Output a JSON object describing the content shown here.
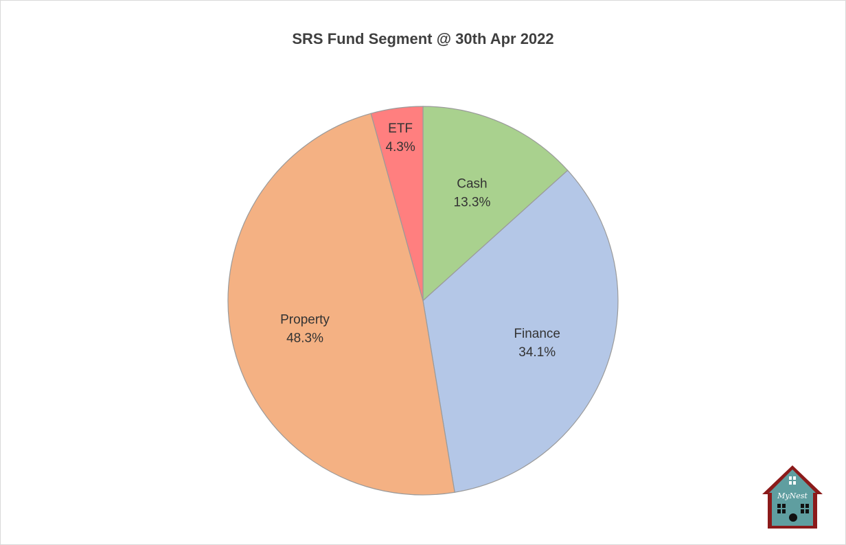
{
  "chart_data": {
    "type": "pie",
    "title": "SRS Fund Segment @ 30th Apr 2022",
    "slices": [
      {
        "label": "Cash",
        "value": 13.3,
        "value_label": "13.3%",
        "color": "#A9D18E"
      },
      {
        "label": "Finance",
        "value": 34.1,
        "value_label": "34.1%",
        "color": "#B4C7E7"
      },
      {
        "label": "Property",
        "value": 48.3,
        "value_label": "48.3%",
        "color": "#F4B183"
      },
      {
        "label": "ETF",
        "value": 4.3,
        "value_label": "4.3%",
        "color": "#FF7F7F"
      }
    ],
    "start_angle": "12 o'clock",
    "direction": "clockwise",
    "legend": "none"
  },
  "logo": {
    "text": "MyNest",
    "roof_color": "#8B1A1A",
    "body_color": "#5F9EA0"
  }
}
